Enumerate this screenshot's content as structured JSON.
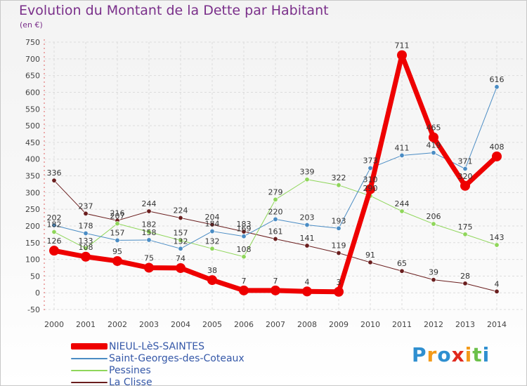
{
  "title": "Evolution du Montant de la Dette par Habitant",
  "unit": "(en €)",
  "logo": {
    "text": "Proxiti",
    "letters": [
      {
        "ch": "P",
        "color": "#2f8fd0"
      },
      {
        "ch": "r",
        "color": "#f39a1a"
      },
      {
        "ch": "o",
        "color": "#2f8fd0"
      },
      {
        "ch": "x",
        "color": "#e0291d"
      },
      {
        "ch": "i",
        "color": "#f39a1a"
      },
      {
        "ch": "t",
        "color": "#6cc04a"
      },
      {
        "ch": "i",
        "color": "#2f8fd0"
      }
    ]
  },
  "chart_data": {
    "type": "line",
    "categories": [
      "2000",
      "2001",
      "2002",
      "2003",
      "2004",
      "2005",
      "2006",
      "2007",
      "2008",
      "2009",
      "2010",
      "2011",
      "2012",
      "2013",
      "2014"
    ],
    "ylim": [
      -50,
      750
    ],
    "yticks": [
      "-50",
      "0",
      "50",
      "100",
      "150",
      "200",
      "250",
      "300",
      "350",
      "400",
      "450",
      "500",
      "550",
      "600",
      "650",
      "700",
      "750"
    ],
    "grid": true,
    "legend_position": "bottom-left",
    "series": [
      {
        "name": "NIEUL-LèS-SAINTES",
        "color": "#ee0000",
        "width": 7,
        "marker": 7,
        "values": [
          126,
          108,
          95,
          75,
          74,
          38,
          7,
          7,
          4,
          3,
          310,
          711,
          465,
          320,
          408
        ],
        "labels": [
          "126",
          "108",
          "95",
          "75",
          "74",
          "38",
          "7",
          "7",
          "4",
          "3",
          "310",
          "711",
          "465",
          "320",
          "408"
        ]
      },
      {
        "name": "Saint-Georges-des-Coteaux",
        "color": "#4a8cc4",
        "width": 1,
        "marker": 3.2,
        "values": [
          202,
          178,
          157,
          158,
          132,
          184,
          169,
          220,
          203,
          193,
          373,
          411,
          419,
          371,
          616
        ],
        "labels": [
          "202",
          "178",
          "157",
          "158",
          "132",
          "184",
          "169",
          "220",
          "203",
          "193",
          "373",
          "411",
          "419",
          "371",
          "616"
        ]
      },
      {
        "name": "Pessines",
        "color": "#8fd65a",
        "width": 1,
        "marker": 3.2,
        "values": [
          182,
          133,
          207,
          182,
          157,
          132,
          108,
          279,
          339,
          322,
          290,
          244,
          206,
          175,
          143
        ],
        "labels": [
          "182",
          "133",
          "207",
          "182",
          "157",
          "132",
          "108",
          "279",
          "339",
          "322",
          "290",
          "244",
          "206",
          "175",
          "143"
        ]
      },
      {
        "name": "La Clisse",
        "color": "#6a1e1e",
        "width": 1,
        "marker": 3.2,
        "values": [
          336,
          237,
          216,
          244,
          224,
          204,
          183,
          161,
          141,
          119,
          91,
          65,
          39,
          28,
          4
        ],
        "labels": [
          "336",
          "237",
          "216",
          "244",
          "224",
          "204",
          "183",
          "161",
          "141",
          "119",
          "91",
          "65",
          "39",
          "28",
          "4"
        ]
      }
    ]
  }
}
